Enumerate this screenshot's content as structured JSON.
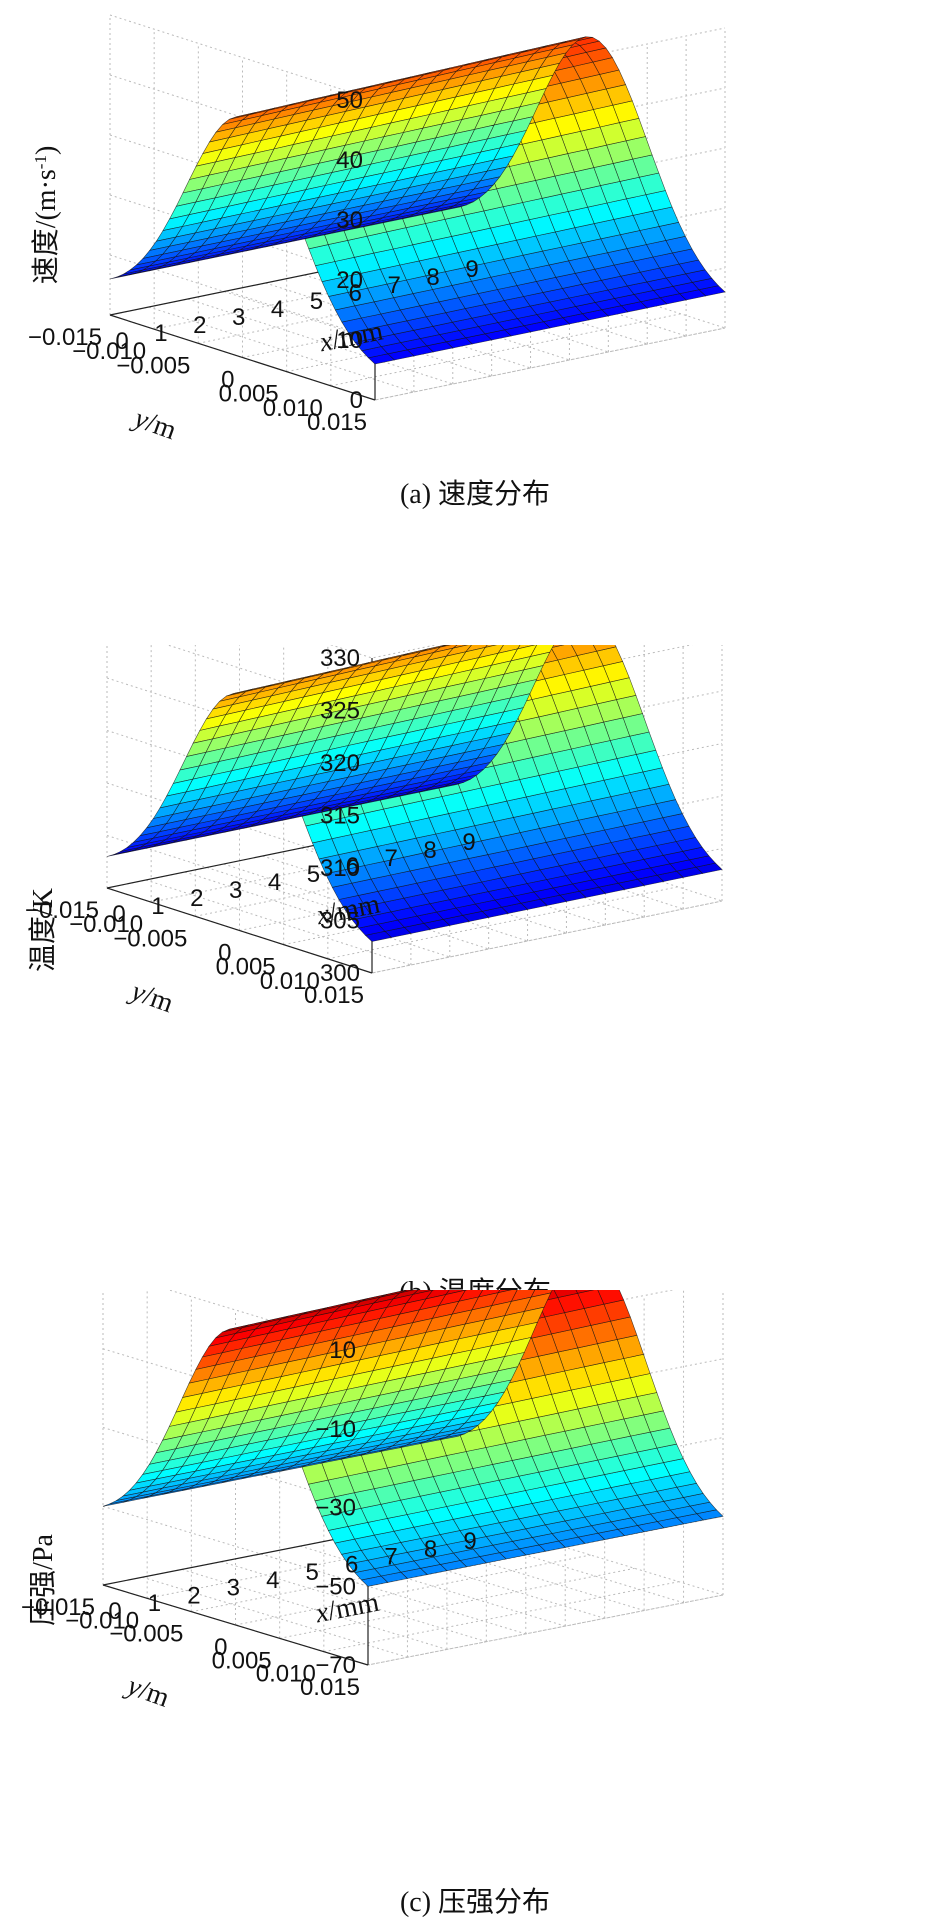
{
  "chart_data": [
    {
      "type": "surface",
      "panel": "a",
      "caption": "(a) 速度分布",
      "zlabel": "速度/(m·s",
      "zlabel_sup": "-1",
      "zlabel_close": ")",
      "xlabel_italic": "x",
      "xlabel_rest": "/mm",
      "ylabel_italic": "y",
      "ylabel_rest": "/m",
      "z_ticks": [
        "0",
        "10",
        "20",
        "30",
        "40",
        "50"
      ],
      "y_ticks": [
        "0.015",
        "0.010",
        "0.005",
        "0",
        "−0.005",
        "−0.010",
        "−0.015"
      ],
      "x_ticks": [
        "0",
        "1",
        "2",
        "3",
        "4",
        "5",
        "6",
        "7",
        "8",
        "9"
      ],
      "x_range": [
        0,
        9
      ],
      "y_range": [
        -0.015,
        0.015
      ],
      "z_range": [
        0,
        50
      ],
      "peak_value": 40,
      "edge_value": 6,
      "colormap": "jet",
      "grid": true
    },
    {
      "type": "surface",
      "panel": "b",
      "caption": "(b) 温度分布",
      "zlabel": "温度/K",
      "xlabel_italic": "x",
      "xlabel_rest": "/mm",
      "ylabel_italic": "y",
      "ylabel_rest": "/m",
      "z_ticks": [
        "300",
        "305",
        "310",
        "315",
        "320",
        "325",
        "330"
      ],
      "y_ticks": [
        "0.015",
        "0.010",
        "0.005",
        "0",
        "−0.005",
        "−0.010",
        "−0.015"
      ],
      "x_ticks": [
        "0",
        "1",
        "2",
        "3",
        "4",
        "5",
        "6",
        "7",
        "8",
        "9"
      ],
      "x_range": [
        0,
        9
      ],
      "y_range": [
        -0.015,
        0.015
      ],
      "z_range": [
        300,
        330
      ],
      "peak_value": 322.5,
      "edge_value": 303,
      "colormap": "jet",
      "grid": true
    },
    {
      "type": "surface",
      "panel": "c",
      "caption": "(c) 压强分布",
      "zlabel": "压强/Pa",
      "xlabel_italic": "x",
      "xlabel_rest": "/mm",
      "ylabel_italic": "y",
      "ylabel_rest": "/m",
      "z_ticks": [
        "−70",
        "−50",
        "−30",
        "−10",
        "10"
      ],
      "y_ticks": [
        "0.015",
        "0.010",
        "0.005",
        "0",
        "−0.005",
        "−0.010",
        "−0.015"
      ],
      "x_ticks": [
        "0",
        "1",
        "2",
        "3",
        "4",
        "5",
        "6",
        "7",
        "8",
        "9"
      ],
      "x_range": [
        0,
        9
      ],
      "y_range": [
        -0.015,
        0.015
      ],
      "z_range": [
        -70,
        10
      ],
      "peak_value": 5,
      "edge_value": -50,
      "colormap": "jet",
      "grid": true
    }
  ]
}
